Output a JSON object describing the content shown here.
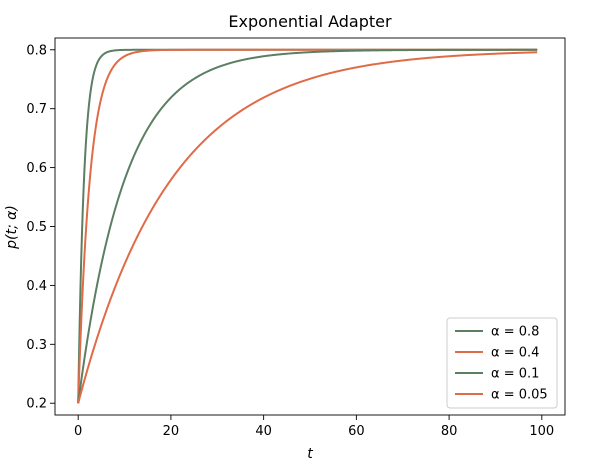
{
  "chart_data": {
    "type": "line",
    "title": "Exponential Adapter",
    "xlabel": "t",
    "ylabel": "p(t; α)",
    "xlim": [
      -5,
      105
    ],
    "ylim": [
      0.18,
      0.82
    ],
    "xticks": [
      0,
      20,
      40,
      60,
      80,
      100
    ],
    "xtick_labels": [
      "0",
      "20",
      "40",
      "60",
      "80",
      "100"
    ],
    "yticks": [
      0.2,
      0.3,
      0.4,
      0.5,
      0.6,
      0.7,
      0.8
    ],
    "ytick_labels": [
      "0.2",
      "0.3",
      "0.4",
      "0.5",
      "0.6",
      "0.7",
      "0.8"
    ],
    "grid": false,
    "legend_position": "bottom-right",
    "curve": {
      "start": 0.2,
      "plateau": 0.8,
      "t_range": [
        0,
        99
      ]
    },
    "series": [
      {
        "name": "α = 0.8",
        "alpha": 0.8,
        "color": "#5b7f62"
      },
      {
        "name": "α = 0.4",
        "alpha": 0.4,
        "color": "#e06b47"
      },
      {
        "name": "α = 0.1",
        "alpha": 0.1,
        "color": "#5b7f62"
      },
      {
        "name": "α = 0.05",
        "alpha": 0.05,
        "color": "#e06b47"
      }
    ]
  }
}
